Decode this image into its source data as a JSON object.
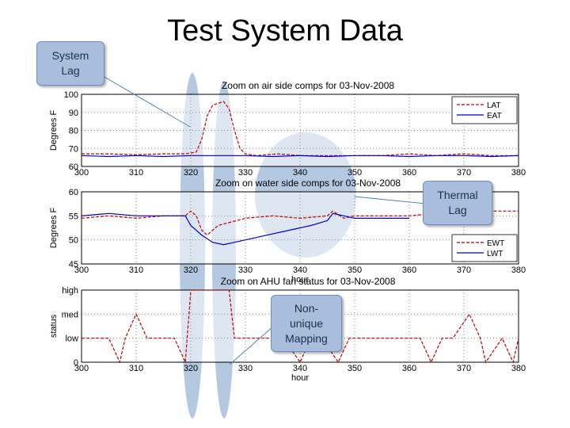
{
  "slide": {
    "title": "Test System Data"
  },
  "callouts": {
    "system_lag": "System\nLag",
    "thermal_lag": "Thermal\nLag",
    "non_unique": "Non-\nunique\nMapping"
  },
  "colors": {
    "red_series": "#c00000",
    "blue_series": "#0000cc",
    "ellipse_fill": "#a8bedc",
    "callout_fill": "#a8bedc"
  },
  "chart_data": [
    {
      "type": "line",
      "title": "Zoom on air side comps for 03-Nov-2008",
      "xlabel": "",
      "ylabel": "Degrees F",
      "xlim": [
        300,
        380
      ],
      "ylim": [
        60,
        100
      ],
      "xticks": [
        "300",
        "310",
        "320",
        "330",
        "340",
        "350",
        "360",
        "370",
        "380"
      ],
      "yticks": [
        "60",
        "70",
        "80",
        "90",
        "100"
      ],
      "legend_position": "top-right",
      "series": [
        {
          "name": "LAT",
          "color": "#c00000",
          "style": "dashed",
          "x": [
            300,
            305,
            310,
            315,
            319,
            321,
            322,
            323,
            324,
            325,
            326,
            327,
            328,
            329,
            330,
            332,
            336,
            340,
            345,
            350,
            355,
            360,
            365,
            370,
            375,
            380
          ],
          "y": [
            67,
            67,
            66.5,
            67,
            67,
            68,
            75,
            88,
            94,
            95,
            96,
            92,
            80,
            70,
            67,
            66,
            67,
            66,
            66,
            66,
            66,
            67,
            66,
            67,
            66,
            66
          ]
        },
        {
          "name": "EAT",
          "color": "#0000cc",
          "style": "solid",
          "x": [
            300,
            305,
            310,
            315,
            320,
            325,
            330,
            335,
            340,
            345,
            350,
            355,
            360,
            365,
            370,
            375,
            380
          ],
          "y": [
            66,
            65.5,
            66,
            65.5,
            66,
            66,
            66,
            65.5,
            66,
            65.5,
            66,
            66,
            65.5,
            66,
            66,
            65.5,
            66
          ]
        }
      ]
    },
    {
      "type": "line",
      "title": "Zoom on water side comps for 03-Nov-2008",
      "xlabel": "hour",
      "ylabel": "Degrees F",
      "xlim": [
        300,
        380
      ],
      "ylim": [
        45,
        60
      ],
      "xticks": [
        "300",
        "310",
        "320",
        "330",
        "340",
        "350",
        "360",
        "370",
        "380"
      ],
      "yticks": [
        "45",
        "50",
        "55",
        "60"
      ],
      "legend_position": "bottom-right",
      "series": [
        {
          "name": "EWT",
          "color": "#c00000",
          "style": "dashed",
          "x": [
            300,
            305,
            310,
            315,
            319,
            320,
            321,
            322,
            323,
            325,
            330,
            335,
            340,
            345,
            346,
            348,
            350,
            355,
            360,
            365,
            370,
            375,
            380
          ],
          "y": [
            54.5,
            55,
            54.5,
            55,
            55,
            56,
            55,
            52,
            51,
            53,
            54.5,
            55,
            54.5,
            55,
            56,
            54.5,
            55,
            55,
            55,
            55.5,
            55.5,
            56,
            56
          ]
        },
        {
          "name": "LWT",
          "color": "#0000cc",
          "style": "solid",
          "x": [
            300,
            305,
            310,
            315,
            319,
            320,
            322,
            324,
            326,
            328,
            330,
            334,
            338,
            342,
            345,
            346,
            348,
            350,
            353,
            356,
            360
          ],
          "y": [
            55,
            55.5,
            55,
            55,
            55,
            53,
            51,
            49.5,
            49,
            49.5,
            50,
            51,
            52,
            53,
            54,
            55.5,
            55,
            54.5,
            54.5,
            54.5,
            54.5
          ]
        }
      ]
    },
    {
      "type": "line",
      "title": "Zoom on AHU fan status for 03-Nov-2008",
      "xlabel": "hour",
      "ylabel": "status",
      "xlim": [
        300,
        380
      ],
      "ylim": [
        0,
        3
      ],
      "xticks": [
        "300",
        "310",
        "320",
        "330",
        "340",
        "350",
        "360",
        "370",
        "380"
      ],
      "yticks": [
        "0",
        "low",
        "med",
        "high"
      ],
      "series": [
        {
          "name": "",
          "color": "#c00000",
          "style": "dashed",
          "x": [
            300,
            302,
            305,
            307,
            308,
            310,
            312,
            314,
            317,
            319,
            320,
            321,
            324,
            325,
            327,
            328,
            337,
            340,
            342,
            344,
            347,
            349,
            362,
            364,
            366,
            368,
            371,
            373,
            374,
            377,
            379,
            380
          ],
          "y": [
            1,
            1,
            1,
            0,
            1,
            2,
            1,
            1,
            1,
            0,
            3,
            3,
            3,
            3,
            3,
            1,
            1,
            0,
            1,
            1,
            0,
            1,
            1,
            0,
            1,
            1,
            2,
            1,
            0,
            1,
            0,
            1
          ]
        }
      ]
    }
  ]
}
